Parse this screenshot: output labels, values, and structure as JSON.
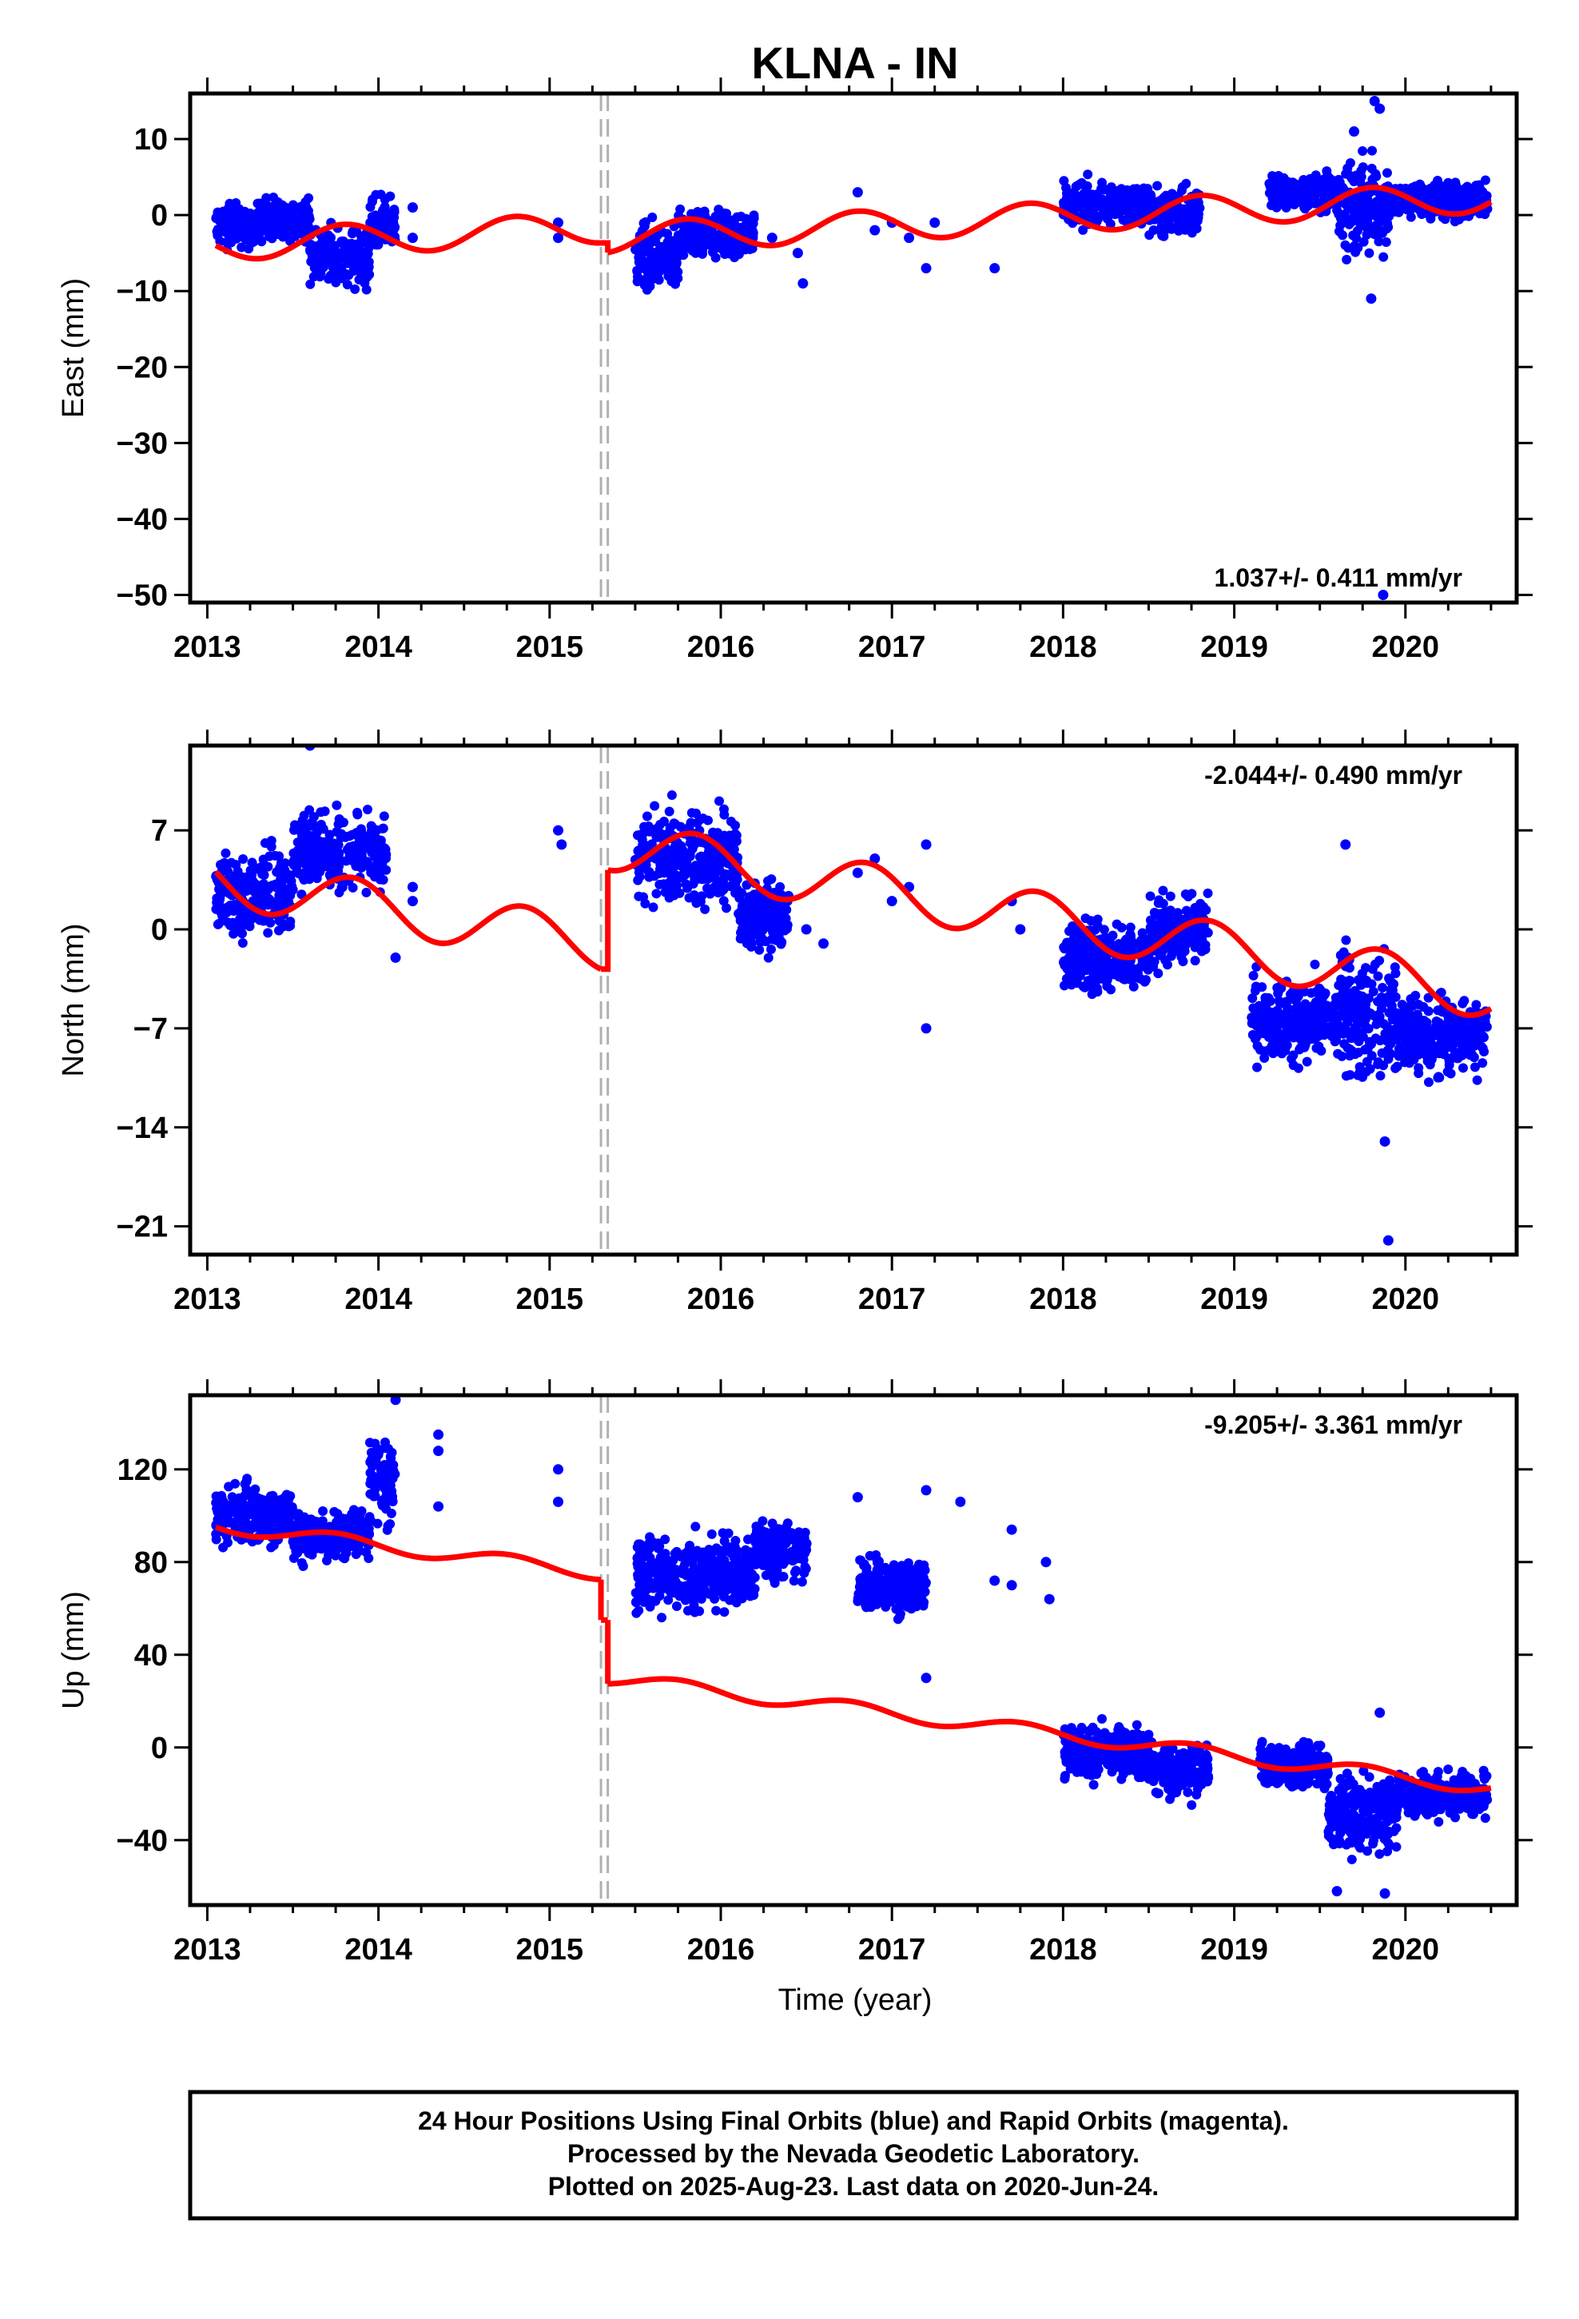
{
  "title": "KLNA - IN",
  "x_axis": {
    "label": "Time (year)",
    "ticks": [
      2013,
      2014,
      2015,
      2016,
      2017,
      2018,
      2019,
      2020
    ],
    "range": [
      2012.9,
      2020.65
    ]
  },
  "footer": {
    "lines": [
      "24 Hour Positions Using Final Orbits (blue) and Rapid Orbits (magenta).",
      "Processed by the Nevada Geodetic Laboratory.",
      "Plotted on 2025-Aug-23. Last data on 2020-Jun-24."
    ]
  },
  "colors": {
    "points": "#0000ff",
    "model": "#ff0000",
    "break": "#b0b0b0",
    "frame": "#000000"
  },
  "break_lines": [
    2015.3,
    2015.34
  ],
  "chart_data": [
    {
      "type": "scatter",
      "ylabel": "East (mm)",
      "yticks": [
        10,
        0,
        -10,
        -20,
        -30,
        -40,
        -50
      ],
      "ylim": [
        -51,
        16
      ],
      "rate": "1.037+/- 0.411 mm/yr",
      "rate_position": "bottom-right",
      "data_clusters": [
        {
          "x": [
            2013.05,
            2013.3
          ],
          "y": [
            -5,
            2
          ]
        },
        {
          "x": [
            2013.3,
            2013.6
          ],
          "y": [
            -4,
            3
          ]
        },
        {
          "x": [
            2013.6,
            2013.95
          ],
          "y": [
            -10,
            -1
          ]
        },
        {
          "x": [
            2013.95,
            2014.1
          ],
          "y": [
            -6,
            3
          ]
        },
        {
          "x": [
            2015.5,
            2015.75
          ],
          "y": [
            -11,
            0
          ]
        },
        {
          "x": [
            2015.75,
            2016.2
          ],
          "y": [
            -6,
            1
          ]
        },
        {
          "x": [
            2018.0,
            2018.5
          ],
          "y": [
            -2,
            5
          ]
        },
        {
          "x": [
            2018.5,
            2018.8
          ],
          "y": [
            -3,
            4
          ]
        },
        {
          "x": [
            2019.2,
            2019.6
          ],
          "y": [
            0,
            6
          ]
        },
        {
          "x": [
            2019.6,
            2019.9
          ],
          "y": [
            -6,
            8
          ]
        },
        {
          "x": [
            2019.9,
            2020.48
          ],
          "y": [
            -1,
            5
          ]
        }
      ],
      "sparse_points": [
        {
          "x": 2014.2,
          "y": 1
        },
        {
          "x": 2014.2,
          "y": -3
        },
        {
          "x": 2015.05,
          "y": -1
        },
        {
          "x": 2015.05,
          "y": -3
        },
        {
          "x": 2016.3,
          "y": -3
        },
        {
          "x": 2016.45,
          "y": -5
        },
        {
          "x": 2016.48,
          "y": -9
        },
        {
          "x": 2016.8,
          "y": 3
        },
        {
          "x": 2016.9,
          "y": -2
        },
        {
          "x": 2017.0,
          "y": -1
        },
        {
          "x": 2017.1,
          "y": -3
        },
        {
          "x": 2017.2,
          "y": -7
        },
        {
          "x": 2017.25,
          "y": -1
        },
        {
          "x": 2017.6,
          "y": -7
        },
        {
          "x": 2019.8,
          "y": -11
        },
        {
          "x": 2019.82,
          "y": 15
        },
        {
          "x": 2019.85,
          "y": 14
        },
        {
          "x": 2019.7,
          "y": 11
        },
        {
          "x": 2019.87,
          "y": -50
        }
      ],
      "model": [
        {
          "x": [
            2013.05,
            2015.3
          ],
          "start": -4,
          "rate": 1.037,
          "amp": 2.0,
          "phase": 0.55
        },
        {
          "x": [
            2015.34,
            2020.5
          ],
          "start": -3,
          "rate": 1.037,
          "amp": 2.0,
          "phase": 0.55
        }
      ]
    },
    {
      "type": "scatter",
      "ylabel": "North (mm)",
      "yticks": [
        7,
        0,
        -7,
        -14,
        -21
      ],
      "ylim": [
        -23,
        13
      ],
      "rate": "-2.044+/- 0.490 mm/yr",
      "rate_position": "top-right",
      "data_clusters": [
        {
          "x": [
            2013.05,
            2013.5
          ],
          "y": [
            -1,
            6
          ]
        },
        {
          "x": [
            2013.5,
            2014.05
          ],
          "y": [
            2,
            9
          ]
        },
        {
          "x": [
            2015.5,
            2016.1
          ],
          "y": [
            1,
            9
          ]
        },
        {
          "x": [
            2016.1,
            2016.4
          ],
          "y": [
            -2,
            4
          ]
        },
        {
          "x": [
            2018.0,
            2018.5
          ],
          "y": [
            -5,
            1
          ]
        },
        {
          "x": [
            2018.5,
            2018.85
          ],
          "y": [
            -3,
            3
          ]
        },
        {
          "x": [
            2019.1,
            2019.6
          ],
          "y": [
            -10,
            -3
          ]
        },
        {
          "x": [
            2019.6,
            2019.95
          ],
          "y": [
            -12,
            0
          ]
        },
        {
          "x": [
            2019.95,
            2020.48
          ],
          "y": [
            -11,
            -4
          ]
        }
      ],
      "sparse_points": [
        {
          "x": 2013.6,
          "y": 13
        },
        {
          "x": 2014.1,
          "y": -2
        },
        {
          "x": 2014.2,
          "y": 3
        },
        {
          "x": 2014.2,
          "y": 2
        },
        {
          "x": 2015.05,
          "y": 7
        },
        {
          "x": 2015.07,
          "y": 6
        },
        {
          "x": 2016.5,
          "y": 0
        },
        {
          "x": 2016.6,
          "y": -1
        },
        {
          "x": 2016.8,
          "y": 4
        },
        {
          "x": 2016.9,
          "y": 5
        },
        {
          "x": 2017.0,
          "y": 2
        },
        {
          "x": 2017.1,
          "y": 3
        },
        {
          "x": 2017.2,
          "y": 6
        },
        {
          "x": 2017.2,
          "y": -7
        },
        {
          "x": 2017.7,
          "y": 2
        },
        {
          "x": 2017.75,
          "y": 0
        },
        {
          "x": 2019.65,
          "y": 6
        },
        {
          "x": 2019.88,
          "y": -15
        },
        {
          "x": 2019.9,
          "y": -22
        }
      ],
      "model": [
        {
          "x": [
            2013.05,
            2015.3
          ],
          "start": 3.5,
          "rate": -2.044,
          "amp": 1.8,
          "phase": 0.6
        },
        {
          "x": [
            2015.34,
            2020.5
          ],
          "start": 6.0,
          "rate": -2.044,
          "amp": 1.8,
          "phase": 0.6
        }
      ]
    },
    {
      "type": "scatter",
      "ylabel": "Up (mm)",
      "yticks": [
        120,
        80,
        40,
        0,
        -40
      ],
      "ylim": [
        -68,
        152
      ],
      "rate": "-9.205+/- 3.361 mm/yr",
      "rate_position": "top-right",
      "data_clusters": [
        {
          "x": [
            2013.05,
            2013.5
          ],
          "y": [
            85,
            115
          ]
        },
        {
          "x": [
            2013.5,
            2013.95
          ],
          "y": [
            78,
            105
          ]
        },
        {
          "x": [
            2013.95,
            2014.1
          ],
          "y": [
            90,
            140
          ]
        },
        {
          "x": [
            2015.5,
            2016.2
          ],
          "y": [
            55,
            95
          ]
        },
        {
          "x": [
            2016.2,
            2016.5
          ],
          "y": [
            70,
            100
          ]
        },
        {
          "x": [
            2016.8,
            2017.2
          ],
          "y": [
            55,
            85
          ]
        },
        {
          "x": [
            2018.0,
            2018.5
          ],
          "y": [
            -15,
            12
          ]
        },
        {
          "x": [
            2018.5,
            2018.85
          ],
          "y": [
            -25,
            5
          ]
        },
        {
          "x": [
            2019.15,
            2019.55
          ],
          "y": [
            -20,
            5
          ]
        },
        {
          "x": [
            2019.55,
            2019.95
          ],
          "y": [
            -50,
            -5
          ]
        },
        {
          "x": [
            2019.95,
            2020.48
          ],
          "y": [
            -32,
            -8
          ]
        }
      ],
      "sparse_points": [
        {
          "x": 2014.1,
          "y": 150
        },
        {
          "x": 2014.35,
          "y": 135
        },
        {
          "x": 2014.35,
          "y": 128
        },
        {
          "x": 2014.35,
          "y": 104
        },
        {
          "x": 2015.05,
          "y": 120
        },
        {
          "x": 2015.05,
          "y": 106
        },
        {
          "x": 2016.5,
          "y": 88
        },
        {
          "x": 2016.8,
          "y": 108
        },
        {
          "x": 2017.2,
          "y": 111
        },
        {
          "x": 2017.2,
          "y": 30
        },
        {
          "x": 2017.4,
          "y": 106
        },
        {
          "x": 2017.6,
          "y": 72
        },
        {
          "x": 2017.7,
          "y": 94
        },
        {
          "x": 2017.7,
          "y": 70
        },
        {
          "x": 2017.9,
          "y": 80
        },
        {
          "x": 2017.92,
          "y": 64
        },
        {
          "x": 2019.6,
          "y": -62
        },
        {
          "x": 2019.88,
          "y": -63
        },
        {
          "x": 2019.85,
          "y": 15
        }
      ],
      "model": [
        {
          "x": [
            2013.05,
            2015.3
          ],
          "start": 96,
          "rate": -9.205,
          "amp": 3.0,
          "phase": 0.5
        },
        {
          "x": [
            2015.3,
            2015.34
          ],
          "start": 55,
          "rate": 0,
          "amp": 0,
          "phase": 0
        },
        {
          "x": [
            2015.34,
            2020.5
          ],
          "start": 30,
          "rate": -9.205,
          "amp": 3.0,
          "phase": 0.5
        }
      ]
    }
  ]
}
